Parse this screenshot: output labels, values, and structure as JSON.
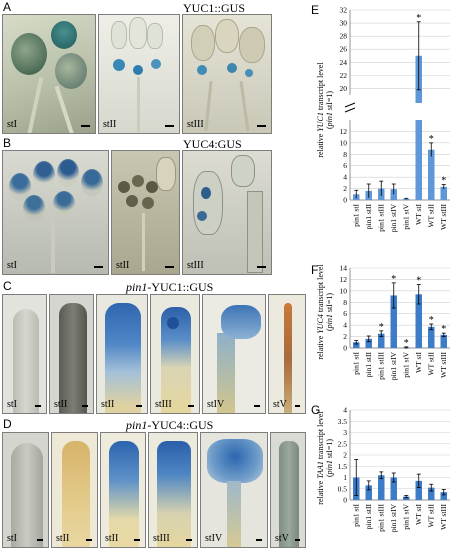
{
  "figure": {
    "panel_letters": [
      "A",
      "B",
      "C",
      "D",
      "E",
      "F",
      "G"
    ],
    "row_titles": {
      "A": "YUC1::GUS",
      "B": "YUC4:GUS",
      "C_italic": "pin1",
      "C_rest": "-YUC1::GUS",
      "D_italic": "pin1",
      "D_rest": "-YUC4::GUS"
    },
    "stages": {
      "A": [
        "stI",
        "stII",
        "stIII"
      ],
      "B": [
        "stI",
        "stII",
        "stIII"
      ],
      "C": [
        "stI",
        "stII",
        "stII",
        "stIII",
        "stIV",
        "stV"
      ],
      "D": [
        "stI",
        "stII",
        "stII",
        "stIII",
        "stIV",
        "stV"
      ]
    }
  },
  "chart_data": [
    {
      "panel": "E",
      "type": "bar",
      "ylabel": "relative YUC1 transcript level (pin1 stI=1)",
      "categories": [
        "pin1 stI",
        "pin1 stII",
        "pin1 stIII",
        "pin1 stIV",
        "pin1 stV",
        "WT stI",
        "WT stII",
        "WT stIII"
      ],
      "values": [
        1.0,
        1.6,
        2.0,
        1.9,
        0.2,
        25.0,
        8.8,
        2.3
      ],
      "errors": [
        0.7,
        1.2,
        1.3,
        0.9,
        0.1,
        5.2,
        1.2,
        0.4
      ],
      "significant": [
        false,
        false,
        false,
        false,
        false,
        true,
        true,
        true
      ],
      "axis_break": [
        14,
        19
      ],
      "lower_ticks": [
        0,
        2,
        4,
        6,
        8,
        10,
        12
      ],
      "upper_ticks": [
        20,
        22,
        24,
        26,
        28,
        30,
        32
      ],
      "grid": true
    },
    {
      "panel": "F",
      "type": "bar",
      "ylabel": "relative YUC4 transcript level (pin1 stI=1)",
      "categories": [
        "pin1 stI",
        "pin1 stII",
        "pin1 stIII",
        "pin1 stIV",
        "pin1 stV",
        "WT stI",
        "WT stII",
        "WT stIII"
      ],
      "values": [
        1.0,
        1.6,
        2.5,
        9.2,
        0.1,
        9.4,
        3.7,
        2.3
      ],
      "errors": [
        0.3,
        0.5,
        0.5,
        2.2,
        0.1,
        1.7,
        0.5,
        0.3
      ],
      "significant": [
        false,
        false,
        true,
        true,
        true,
        true,
        true,
        true
      ],
      "ylim": [
        0,
        14
      ],
      "ticks": [
        0,
        2,
        4,
        6,
        8,
        10,
        12,
        14
      ],
      "grid": true
    },
    {
      "panel": "G",
      "type": "bar",
      "ylabel": "relative TAA1 transcript level (pin1 stI=1)",
      "categories": [
        "pin1 stI",
        "pin1 stII",
        "pin1 stIII",
        "pin1 stIV",
        "pin1 stV",
        "WT stI",
        "WT stII",
        "WT stIII"
      ],
      "values": [
        1.0,
        0.65,
        1.1,
        1.0,
        0.15,
        0.85,
        0.55,
        0.35
      ],
      "errors": [
        0.8,
        0.2,
        0.15,
        0.2,
        0.05,
        0.3,
        0.15,
        0.12
      ],
      "significant": [
        false,
        false,
        false,
        false,
        false,
        false,
        false,
        false
      ],
      "ylim": [
        0,
        4
      ],
      "ticks": [
        0,
        0.5,
        1,
        1.5,
        2,
        2.5,
        3,
        3.5,
        4
      ],
      "grid": true
    }
  ],
  "colors": {
    "bar": "#3d7cc9",
    "bar_light": "#5f98d8",
    "grid": "#cfcfcf",
    "axis": "#7a7a7a"
  }
}
